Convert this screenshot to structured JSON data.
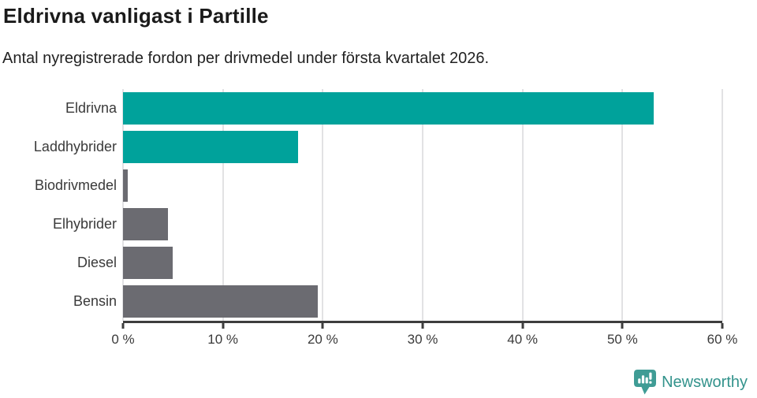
{
  "chart_data": {
    "type": "bar",
    "orientation": "horizontal",
    "title": "Eldrivna vanligast i Partille",
    "subtitle": "Antal nyregistrerade fordon per drivmedel under första kvartalet 2026.",
    "categories": [
      "Eldrivna",
      "Laddhybrider",
      "Biodrivmedel",
      "Elhybrider",
      "Diesel",
      "Bensin"
    ],
    "values": [
      53.1,
      17.5,
      0.5,
      4.5,
      5.0,
      19.5
    ],
    "unit": "%",
    "xlim": [
      0,
      60
    ],
    "x_ticks": [
      0,
      10,
      20,
      30,
      40,
      50,
      60
    ],
    "x_tick_labels": [
      "0 %",
      "10 %",
      "20 %",
      "30 %",
      "40 %",
      "50 %",
      "60 %"
    ],
    "bar_colors": [
      "#00a29b",
      "#00a29b",
      "#6b6b71",
      "#6b6b71",
      "#6b6b71",
      "#6b6b71"
    ],
    "grid": "vertical",
    "legend": "none"
  },
  "footer": {
    "brand": "Newsworthy",
    "brand_color": "#33938c",
    "logo_color": "#3f9c95",
    "logo_icon": "bar-chart-speech-bubble-icon"
  },
  "colors": {
    "accent_teal": "#00a29b",
    "bar_gray": "#6b6b71",
    "axis": "#3d3d3d",
    "gridline": "#e2e2e4",
    "title_text": "#1a1a1a",
    "label_text": "#3a3a3a"
  }
}
